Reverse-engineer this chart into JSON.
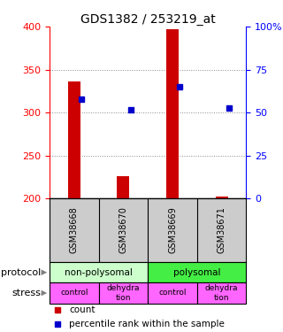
{
  "title": "GDS1382 / 253219_at",
  "samples": [
    "GSM38668",
    "GSM38670",
    "GSM38669",
    "GSM38671"
  ],
  "count_values": [
    336,
    226,
    397,
    202
  ],
  "percentile_values": [
    315,
    303,
    330,
    305
  ],
  "left_ylim": [
    200,
    400
  ],
  "left_yticks": [
    200,
    250,
    300,
    350,
    400
  ],
  "right_ylim": [
    0,
    100
  ],
  "right_yticks": [
    0,
    25,
    50,
    75,
    100
  ],
  "right_yticklabels": [
    "0",
    "25",
    "50",
    "75",
    "100%"
  ],
  "left_color": "#ff0000",
  "right_color": "#0000ff",
  "bar_color": "#cc0000",
  "dot_color": "#0000cc",
  "protocol_labels": [
    "non-polysomal",
    "polysomal"
  ],
  "protocol_color_light": "#ccffcc",
  "protocol_color_bright": "#44ee44",
  "stress_labels": [
    "control",
    "dehydra\ntion",
    "control",
    "dehydra\ntion"
  ],
  "stress_color": "#ff66ff",
  "sample_box_color": "#cccccc",
  "grid_color": "#888888",
  "background_color": "#ffffff",
  "bar_width": 0.25
}
